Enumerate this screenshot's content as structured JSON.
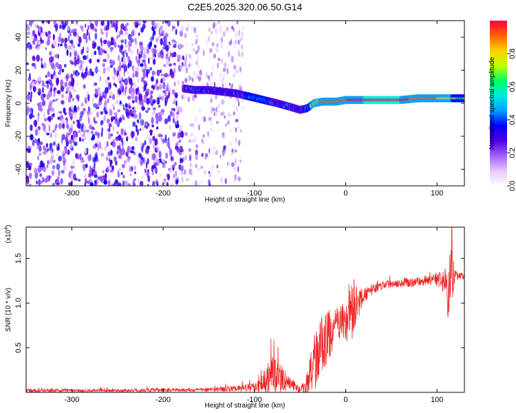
{
  "title": "C2E5.2025.320.06.50.G14",
  "chart_data": [
    {
      "type": "heatmap",
      "name": "spectrogram",
      "xlabel": "Height of straight line (km)",
      "ylabel": "Frequency (Hz)",
      "xlim": [
        -350,
        130
      ],
      "ylim": [
        -50,
        50
      ],
      "xticks": [
        -300,
        -200,
        -100,
        0,
        100
      ],
      "yticks": [
        -40,
        -20,
        0,
        20,
        40
      ],
      "colorbar": {
        "label": "Normalized spectral amplitude",
        "range": [
          0,
          1
        ],
        "ticks": [
          0.0,
          0.2,
          0.4,
          0.6,
          0.8
        ],
        "tick_labels": [
          "0.0",
          "0.2",
          "0.4",
          "0.6",
          "0.8"
        ],
        "colormap": [
          "#ffffff",
          "#e8c6ff",
          "#a060ff",
          "#5000e0",
          "#0000ff",
          "#00a0ff",
          "#00e8e0",
          "#00ff60",
          "#c0ff00",
          "#ffd000",
          "#ff6000",
          "#ff0040"
        ]
      },
      "noise_region": {
        "x_from": -350,
        "x_to": -178,
        "density": "high"
      },
      "faint_region": {
        "x_from": -178,
        "x_to": -112,
        "density": "low"
      },
      "signal_track": {
        "x": [
          -178,
          -165,
          -150,
          -135,
          -120,
          -105,
          -90,
          -75,
          -62,
          -50,
          -42,
          -35,
          -25,
          -10,
          0,
          20,
          40,
          60,
          80,
          95,
          110,
          130
        ],
        "y": [
          9,
          8,
          8,
          7,
          6,
          4,
          2,
          0,
          -2,
          -4,
          -3,
          0,
          1,
          1,
          2,
          2,
          2,
          2,
          3,
          3,
          3,
          3
        ],
        "peak_amplitude": [
          0.35,
          0.45,
          0.45,
          0.4,
          0.45,
          0.5,
          0.5,
          0.45,
          0.45,
          0.4,
          0.5,
          0.9,
          0.9,
          0.95,
          0.95,
          1.0,
          1.0,
          1.0,
          0.9,
          0.9,
          0.8,
          0.6
        ]
      }
    },
    {
      "type": "line",
      "name": "snr",
      "xlabel": "Height of straight line (km)",
      "ylabel": "SNR (10 * v/v)",
      "y_multiplier_label": "(x10",
      "y_multiplier_exponent": "4",
      "xlim": [
        -350,
        130
      ],
      "ylim": [
        0,
        1.85
      ],
      "xticks": [
        -300,
        -200,
        -100,
        0,
        100
      ],
      "yticks": [
        0.5,
        1.0,
        1.5
      ],
      "ytick_labels": [
        "0.5",
        "1.0",
        "1.5"
      ],
      "color": "#ee2222",
      "series_envelope": {
        "x": [
          -350,
          -250,
          -160,
          -120,
          -100,
          -90,
          -85,
          -80,
          -75,
          -70,
          -65,
          -60,
          -55,
          -50,
          -45,
          -40,
          -35,
          -30,
          -25,
          -20,
          -15,
          -10,
          -5,
          0,
          5,
          10,
          15,
          20,
          30,
          40,
          50,
          60,
          70,
          80,
          90,
          100,
          105,
          110,
          112,
          114,
          116,
          118,
          120,
          125,
          130
        ],
        "mean": [
          0.02,
          0.02,
          0.03,
          0.04,
          0.06,
          0.12,
          0.18,
          0.2,
          0.18,
          0.15,
          0.12,
          0.1,
          0.06,
          0.03,
          0.05,
          0.15,
          0.3,
          0.45,
          0.55,
          0.62,
          0.68,
          0.75,
          0.8,
          0.78,
          0.85,
          0.95,
          1.02,
          1.08,
          1.16,
          1.2,
          1.22,
          1.23,
          1.23,
          1.24,
          1.26,
          1.27,
          1.25,
          1.2,
          1.0,
          1.28,
          1.4,
          1.3,
          1.32,
          1.3,
          1.3
        ],
        "spread": [
          0.02,
          0.02,
          0.02,
          0.03,
          0.05,
          0.12,
          0.18,
          0.2,
          0.18,
          0.15,
          0.1,
          0.08,
          0.05,
          0.03,
          0.08,
          0.2,
          0.3,
          0.35,
          0.32,
          0.3,
          0.25,
          0.2,
          0.2,
          0.2,
          0.3,
          0.35,
          0.15,
          0.08,
          0.06,
          0.05,
          0.05,
          0.05,
          0.05,
          0.05,
          0.06,
          0.08,
          0.1,
          0.15,
          0.25,
          0.3,
          0.45,
          0.2,
          0.05,
          0.04,
          0.04
        ]
      }
    }
  ]
}
